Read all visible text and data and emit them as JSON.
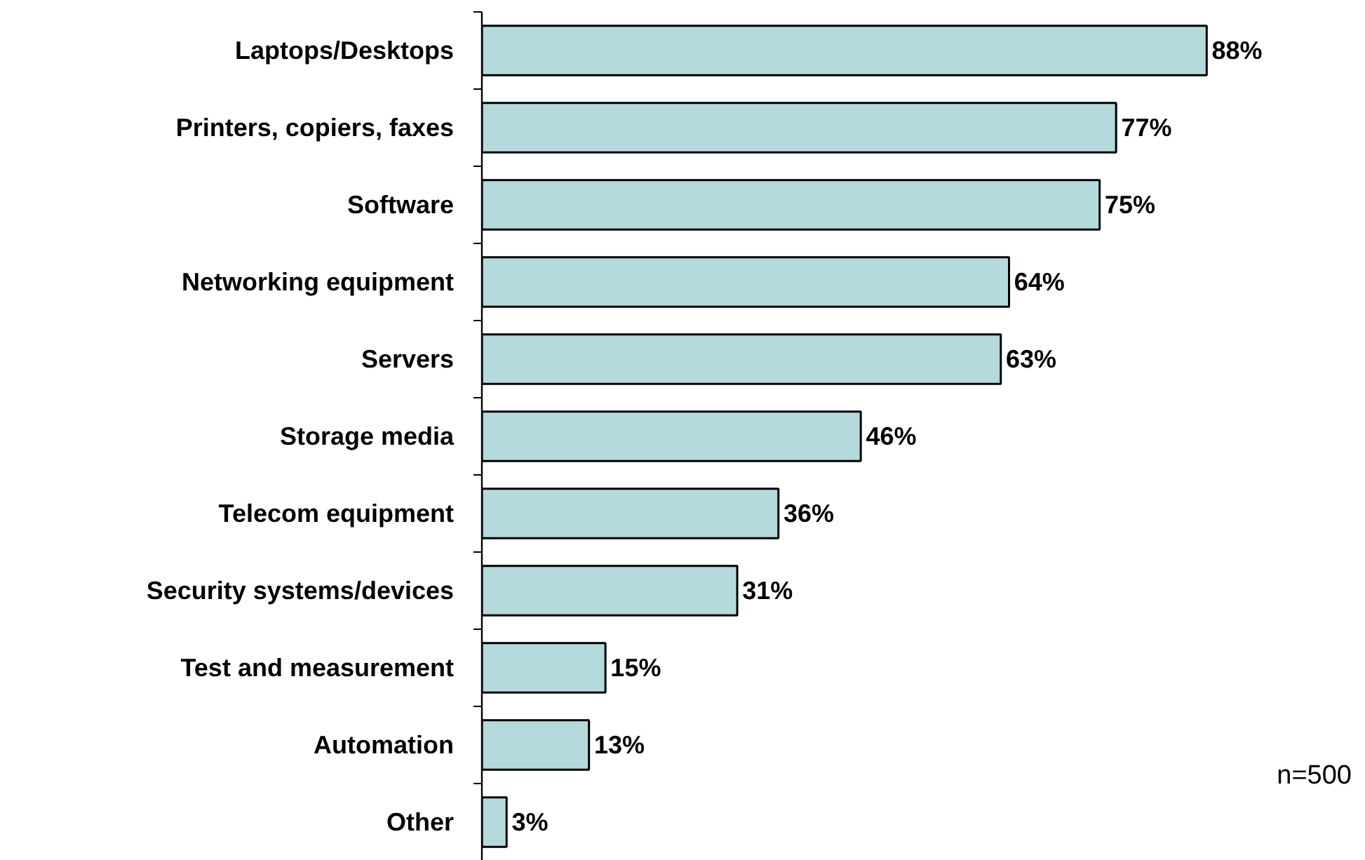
{
  "chart_data": {
    "type": "bar",
    "orientation": "horizontal",
    "data_labels": true,
    "categories": [
      "Laptops/Desktops",
      "Printers, copiers, faxes",
      "Software",
      "Networking equipment",
      "Servers",
      "Storage media",
      "Telecom equipment",
      "Security systems/devices",
      "Test and measurement",
      "Automation",
      "Other"
    ],
    "values": [
      88,
      77,
      75,
      64,
      63,
      46,
      36,
      31,
      15,
      13,
      3
    ],
    "value_labels": [
      "88%",
      "77%",
      "75%",
      "64%",
      "63%",
      "46%",
      "36%",
      "31%",
      "15%",
      "13%",
      "3%"
    ],
    "color": "#b4dadd",
    "annotations": [
      "n=500"
    ]
  }
}
